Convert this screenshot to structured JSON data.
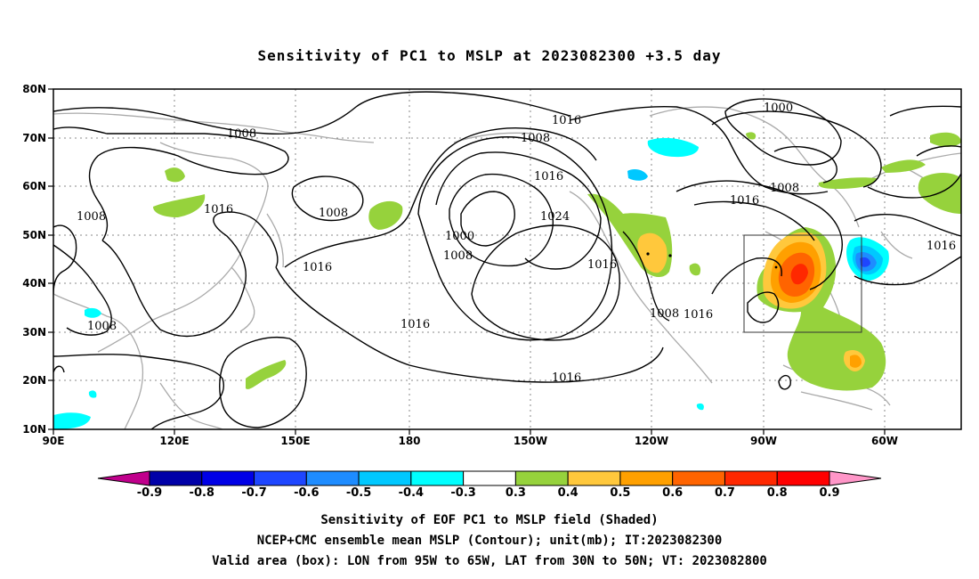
{
  "title": "Sensitivity of PC1 to MSLP at 2023082300 +3.5 day",
  "lat_ticks": [
    "80N",
    "70N",
    "60N",
    "50N",
    "40N",
    "30N",
    "20N",
    "10N"
  ],
  "lon_ticks": [
    "90E",
    "120E",
    "150E",
    "180",
    "150W",
    "120W",
    "90W",
    "60W"
  ],
  "contour_labels": {
    "c1008a": "1008",
    "c1008b": "1008",
    "c1008c": "1008",
    "c1008d": "1008",
    "c1008e": "1008",
    "c1008f": "1008",
    "c1008g": "1008",
    "c1008h": "1008",
    "c1016a": "1016",
    "c1016b": "1016",
    "c1016c": "1016",
    "c1016d": "1016",
    "c1016e": "1016",
    "c1016f": "1016",
    "c1016g": "1016",
    "c1016h": "1016",
    "c1016i": "1016",
    "c1016j": "1016",
    "c1024": "1024",
    "c1000a": "1000",
    "c1000b": "1000"
  },
  "colorbar": {
    "labels": [
      "-0.9",
      "-0.8",
      "-0.7",
      "-0.6",
      "-0.5",
      "-0.4",
      "-0.3",
      "0.3",
      "0.4",
      "0.5",
      "0.6",
      "0.7",
      "0.8",
      "0.9"
    ],
    "colors": [
      "#c0008c",
      "#0000a8",
      "#0000e6",
      "#1e46ff",
      "#1e8cff",
      "#00c8ff",
      "#00ffff",
      "#ffffff",
      "#96d23c",
      "#ffc83c",
      "#ffa000",
      "#ff6400",
      "#ff2800",
      "#ff0000",
      "#ff96c8"
    ]
  },
  "footer": {
    "line1": "Sensitivity of EOF PC1 to MSLP field (Shaded)",
    "line2": "NCEP+CMC ensemble mean MSLP (Contour); unit(mb); IT:2023082300",
    "line3": "Valid area (box): LON from 95W to 65W, LAT from 30N to 50N; VT: 2023082800"
  }
}
